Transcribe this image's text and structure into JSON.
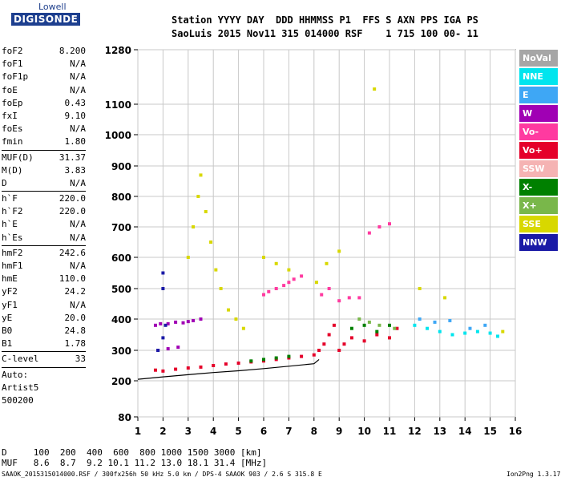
{
  "logo": {
    "line1": "Lowell",
    "line2": "DIGISONDE"
  },
  "header": {
    "row1": "Station YYYY DAY  DDD HHMMSS P1  FFS S AXN PPS IGA PS",
    "row2": "SaoLuis 2015 Nov11 315 014000 RSF    1 715 100 00- 11"
  },
  "params": [
    {
      "label": "foF2",
      "value": "8.200"
    },
    {
      "label": "foF1",
      "value": "N/A"
    },
    {
      "label": "foF1p",
      "value": "N/A"
    },
    {
      "label": "foE",
      "value": "N/A"
    },
    {
      "label": "foEp",
      "value": "0.43"
    },
    {
      "label": "fxI",
      "value": "9.10"
    },
    {
      "label": "foEs",
      "value": "N/A"
    },
    {
      "label": "fmin",
      "value": "1.80"
    },
    {
      "sep": true
    },
    {
      "label": "MUF(D)",
      "value": "31.37"
    },
    {
      "label": "M(D)",
      "value": "3.83"
    },
    {
      "label": "D",
      "value": "N/A"
    },
    {
      "sep": true
    },
    {
      "label": "h`F",
      "value": "220.0"
    },
    {
      "label": "h`F2",
      "value": "220.0"
    },
    {
      "label": "h`E",
      "value": "N/A"
    },
    {
      "label": "h`Es",
      "value": "N/A"
    },
    {
      "sep": true
    },
    {
      "label": "hmF2",
      "value": "242.6"
    },
    {
      "label": "hmF1",
      "value": "N/A"
    },
    {
      "label": "hmE",
      "value": "110.0"
    },
    {
      "label": "yF2",
      "value": "24.2"
    },
    {
      "label": "yF1",
      "value": "N/A"
    },
    {
      "label": "yE",
      "value": "20.0"
    },
    {
      "label": "B0",
      "value": "24.8"
    },
    {
      "label": "B1",
      "value": "1.78"
    },
    {
      "sep": true
    },
    {
      "label": "C-level",
      "value": "33"
    },
    {
      "sep": true
    }
  ],
  "auto": {
    "line1": "Auto:",
    "line2": "Artist5",
    "line3": "500200"
  },
  "legend": [
    {
      "name": "NoVal",
      "color": "#a6a6a6"
    },
    {
      "name": "NNE",
      "color": "#00e5ee"
    },
    {
      "name": "E",
      "color": "#3ea7f5"
    },
    {
      "name": "W",
      "color": "#a000b4"
    },
    {
      "name": "Vo-",
      "color": "#ff3aa0"
    },
    {
      "name": "Vo+",
      "color": "#e5002a"
    },
    {
      "name": "SSW",
      "color": "#f5b3b3"
    },
    {
      "name": "X-",
      "color": "#008000"
    },
    {
      "name": "X+",
      "color": "#79b74a"
    },
    {
      "name": "SSE",
      "color": "#d8d800"
    },
    {
      "name": "NNW",
      "color": "#1a1aa6"
    }
  ],
  "bottom": {
    "row_d": "D     100  200  400  600  800 1000 1500 3000 [km]",
    "row_muf": "MUF   8.6  8.7  9.2 10.1 11.2 13.0 18.1 31.4 [MHz]"
  },
  "footer": {
    "left": "SAAOK_2015315014000.RSF / 300fx256h 50 kHz 5.0 km / DPS-4 SAAOK 903 / 2.6 S 315.8 E",
    "right": "Ion2Png 1.3.17"
  },
  "chart_data": {
    "type": "scatter",
    "title": "",
    "xlabel": "",
    "ylabel": "",
    "xlim": [
      1,
      16
    ],
    "ylim": [
      80,
      1280
    ],
    "x_ticks": [
      1,
      2,
      3,
      4,
      5,
      6,
      7,
      8,
      9,
      10,
      11,
      12,
      13,
      14,
      15,
      16
    ],
    "y_ticks": [
      80,
      200,
      300,
      400,
      500,
      600,
      700,
      800,
      900,
      1000,
      1100,
      1280
    ],
    "grid": true,
    "note_scale": "virtual height, non-uniform: 80-1280 km",
    "series": [
      {
        "name": "Vo+",
        "color": "#e5002a",
        "points": [
          [
            1.7,
            235
          ],
          [
            2.0,
            232
          ],
          [
            2.5,
            238
          ],
          [
            3.0,
            242
          ],
          [
            3.5,
            245
          ],
          [
            4.0,
            250
          ],
          [
            4.5,
            255
          ],
          [
            5.0,
            258
          ],
          [
            5.5,
            262
          ],
          [
            6.0,
            265
          ],
          [
            6.5,
            270
          ],
          [
            7.0,
            275
          ],
          [
            7.5,
            280
          ],
          [
            8.0,
            285
          ],
          [
            8.2,
            300
          ],
          [
            8.4,
            320
          ],
          [
            8.6,
            350
          ],
          [
            8.8,
            380
          ],
          [
            9.0,
            300
          ],
          [
            9.2,
            320
          ],
          [
            9.5,
            340
          ],
          [
            10.0,
            330
          ],
          [
            10.5,
            350
          ],
          [
            11.0,
            340
          ],
          [
            11.3,
            370
          ]
        ]
      },
      {
        "name": "Vo-",
        "color": "#ff3aa0",
        "points": [
          [
            6.0,
            480
          ],
          [
            6.2,
            490
          ],
          [
            6.5,
            500
          ],
          [
            6.8,
            510
          ],
          [
            7.0,
            520
          ],
          [
            7.2,
            530
          ],
          [
            7.5,
            540
          ],
          [
            8.3,
            480
          ],
          [
            8.6,
            500
          ],
          [
            9.0,
            460
          ],
          [
            9.4,
            470
          ],
          [
            9.8,
            470
          ],
          [
            10.2,
            680
          ],
          [
            10.6,
            700
          ],
          [
            11.0,
            710
          ]
        ]
      },
      {
        "name": "W",
        "color": "#a000b4",
        "points": [
          [
            1.7,
            380
          ],
          [
            1.9,
            385
          ],
          [
            2.2,
            385
          ],
          [
            2.5,
            390
          ],
          [
            2.8,
            388
          ],
          [
            3.0,
            392
          ],
          [
            3.2,
            395
          ],
          [
            3.5,
            400
          ],
          [
            1.8,
            300
          ],
          [
            2.2,
            305
          ],
          [
            2.6,
            310
          ]
        ]
      },
      {
        "name": "SSE",
        "color": "#d8d800",
        "points": [
          [
            3.0,
            600
          ],
          [
            3.2,
            700
          ],
          [
            3.4,
            800
          ],
          [
            3.5,
            870
          ],
          [
            3.7,
            750
          ],
          [
            3.9,
            650
          ],
          [
            4.1,
            560
          ],
          [
            4.3,
            500
          ],
          [
            4.6,
            430
          ],
          [
            4.9,
            400
          ],
          [
            5.2,
            370
          ],
          [
            6.0,
            600
          ],
          [
            6.5,
            580
          ],
          [
            7.0,
            560
          ],
          [
            8.1,
            520
          ],
          [
            8.5,
            580
          ],
          [
            9.0,
            620
          ],
          [
            10.4,
            1150
          ],
          [
            12.2,
            500
          ],
          [
            13.2,
            470
          ],
          [
            15.5,
            360
          ]
        ]
      },
      {
        "name": "NNE",
        "color": "#00e5ee",
        "points": [
          [
            12.0,
            380
          ],
          [
            12.5,
            370
          ],
          [
            13.0,
            360
          ],
          [
            13.5,
            350
          ],
          [
            14.0,
            355
          ],
          [
            14.5,
            360
          ],
          [
            15.0,
            355
          ],
          [
            15.3,
            345
          ]
        ]
      },
      {
        "name": "E",
        "color": "#3ea7f5",
        "points": [
          [
            12.2,
            400
          ],
          [
            12.8,
            390
          ],
          [
            13.4,
            395
          ],
          [
            14.2,
            370
          ],
          [
            14.8,
            380
          ]
        ]
      },
      {
        "name": "X-",
        "color": "#008000",
        "points": [
          [
            5.5,
            265
          ],
          [
            6.0,
            270
          ],
          [
            6.5,
            275
          ],
          [
            7.0,
            280
          ],
          [
            9.5,
            370
          ],
          [
            10.0,
            380
          ],
          [
            10.5,
            360
          ],
          [
            11.0,
            380
          ]
        ]
      },
      {
        "name": "X+",
        "color": "#79b74a",
        "points": [
          [
            9.8,
            400
          ],
          [
            10.2,
            390
          ],
          [
            10.6,
            380
          ],
          [
            11.2,
            370
          ]
        ]
      },
      {
        "name": "NNW",
        "color": "#1a1aa6",
        "points": [
          [
            1.8,
            300
          ],
          [
            2.0,
            340
          ],
          [
            2.1,
            380
          ],
          [
            2.0,
            500
          ],
          [
            2.0,
            550
          ]
        ]
      }
    ],
    "curve": {
      "name": "profile",
      "color": "#000000",
      "points": [
        [
          1.0,
          205
        ],
        [
          2.0,
          213
        ],
        [
          3.0,
          220
        ],
        [
          4.0,
          227
        ],
        [
          5.0,
          233
        ],
        [
          6.0,
          240
        ],
        [
          7.0,
          248
        ],
        [
          8.0,
          256
        ],
        [
          8.2,
          270
        ]
      ]
    }
  }
}
